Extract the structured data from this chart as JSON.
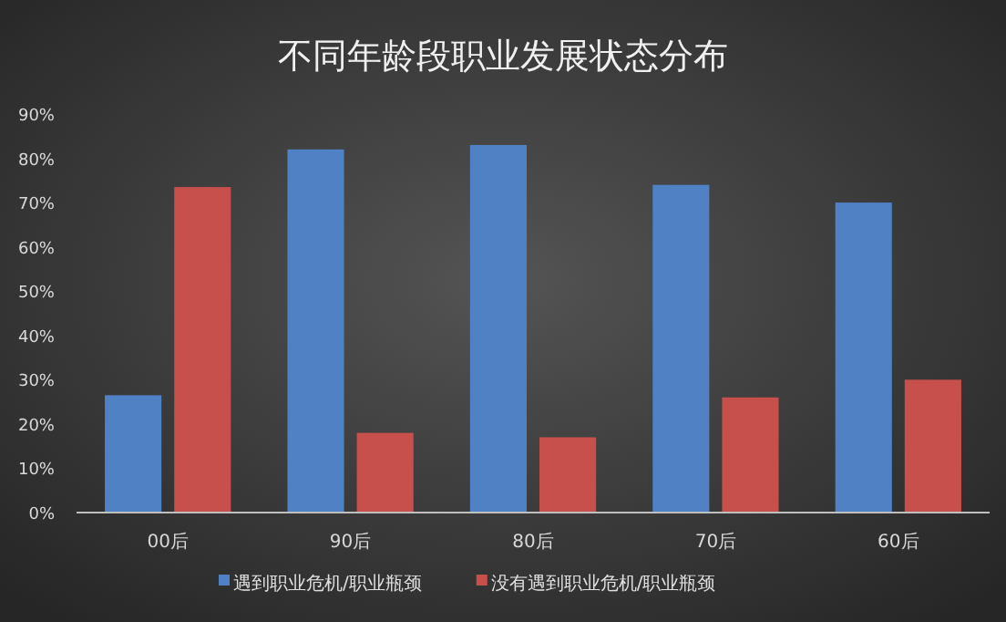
{
  "chart_data": {
    "type": "bar",
    "title": "不同年龄段职业发展状态分布",
    "categories": [
      "00后",
      "90后",
      "80后",
      "70后",
      "60后"
    ],
    "series": [
      {
        "name": "遇到职业危机/职业瓶颈",
        "color": "#4f81c4",
        "values": [
          26.5,
          82,
          83,
          74,
          70
        ]
      },
      {
        "name": "没有遇到职业危机/职业瓶颈",
        "color": "#c8504c",
        "values": [
          73.5,
          18,
          17,
          26,
          30
        ]
      }
    ],
    "ylim": [
      0,
      90
    ],
    "yticks": [
      {
        "value": 0,
        "label": "0%"
      },
      {
        "value": 10,
        "label": "10%"
      },
      {
        "value": 20,
        "label": "20%"
      },
      {
        "value": 30,
        "label": "30%"
      },
      {
        "value": 40,
        "label": "40%"
      },
      {
        "value": 50,
        "label": "50%"
      },
      {
        "value": 60,
        "label": "60%"
      },
      {
        "value": 70,
        "label": "70%"
      },
      {
        "value": 80,
        "label": "80%"
      },
      {
        "value": 90,
        "label": "90%"
      }
    ],
    "grid": false,
    "legend": "bottom"
  }
}
